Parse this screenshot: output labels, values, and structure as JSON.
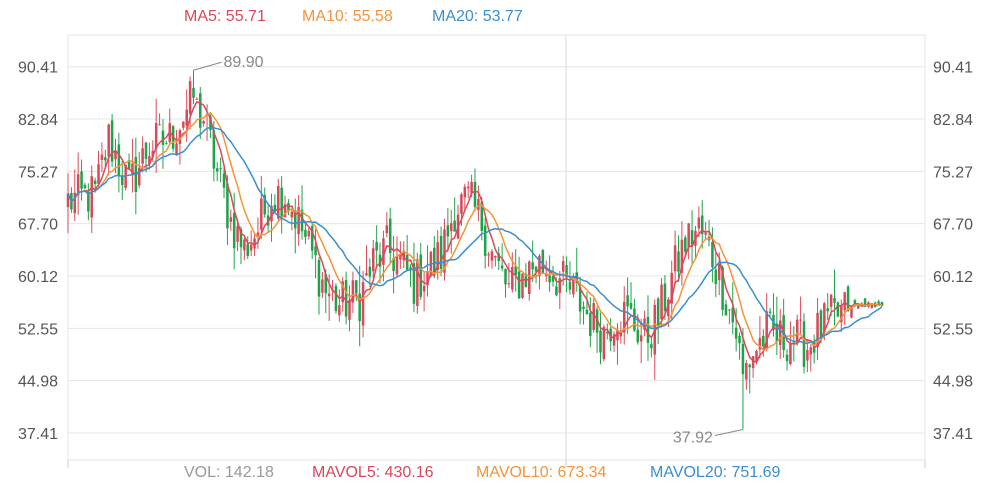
{
  "chart_data": {
    "type": "candlestick",
    "ylim": [
      33.5,
      95.0
    ],
    "y_ticks": [
      "90.41",
      "82.84",
      "75.27",
      "67.70",
      "60.12",
      "52.55",
      "44.98",
      "37.41"
    ],
    "grid": true,
    "colors": {
      "up": "#d84a5a",
      "down": "#1fa34a",
      "ma5": "#d84a5a",
      "ma10": "#f2953a",
      "ma20": "#3a8fd1",
      "vol": "#999999",
      "axis_text": "#555555",
      "grid": "#e6e6e6",
      "annotation": "#888888"
    },
    "ma_legend": [
      {
        "name": "MA5",
        "label": "MA5: ",
        "value": "55.71",
        "color": "#d84a5a"
      },
      {
        "name": "MA10",
        "label": "MA10: ",
        "value": "55.58",
        "color": "#f2953a"
      },
      {
        "name": "MA20",
        "label": "MA20: ",
        "value": "53.77",
        "color": "#3a8fd1"
      }
    ],
    "vol_legend": [
      {
        "label": "VOL: ",
        "value": "142.18",
        "color": "#999999"
      },
      {
        "label": "MAVOL5: ",
        "value": "430.16",
        "color": "#d84a5a"
      },
      {
        "label": "MAVOL10: ",
        "value": "673.34",
        "color": "#f2953a"
      },
      {
        "label": "MAVOL20: ",
        "value": "751.69",
        "color": "#3a8fd1"
      }
    ],
    "annotations": [
      {
        "text": "89.90",
        "index": 37,
        "value": 89.9,
        "type": "max"
      },
      {
        "text": "37.92",
        "index": 199,
        "value": 37.92,
        "type": "min"
      }
    ],
    "series_close_anchors": [
      [
        0,
        71.0
      ],
      [
        8,
        72.0
      ],
      [
        12,
        80.0
      ],
      [
        18,
        73.0
      ],
      [
        24,
        79.0
      ],
      [
        30,
        80.0
      ],
      [
        36,
        85.0
      ],
      [
        40,
        83.0
      ],
      [
        44,
        75.0
      ],
      [
        48,
        68.0
      ],
      [
        52,
        64.0
      ],
      [
        56,
        67.0
      ],
      [
        60,
        72.0
      ],
      [
        64,
        72.0
      ],
      [
        68,
        68.0
      ],
      [
        72,
        63.0
      ],
      [
        76,
        58.0
      ],
      [
        80,
        56.0
      ],
      [
        86,
        57.0
      ],
      [
        90,
        62.0
      ],
      [
        94,
        64.0
      ],
      [
        98,
        62.0
      ],
      [
        102,
        59.0
      ],
      [
        106,
        61.0
      ],
      [
        110,
        63.0
      ],
      [
        114,
        70.0
      ],
      [
        118,
        71.0
      ],
      [
        122,
        68.0
      ],
      [
        126,
        62.0
      ],
      [
        130,
        58.0
      ],
      [
        134,
        60.0
      ],
      [
        138,
        62.0
      ],
      [
        142,
        61.0
      ],
      [
        146,
        59.0
      ],
      [
        150,
        57.0
      ],
      [
        154,
        54.0
      ],
      [
        158,
        52.0
      ],
      [
        162,
        55.0
      ],
      [
        166,
        54.0
      ],
      [
        170,
        51.0
      ],
      [
        174,
        54.0
      ],
      [
        178,
        60.0
      ],
      [
        182,
        65.0
      ],
      [
        186,
        67.0
      ],
      [
        190,
        63.0
      ],
      [
        194,
        57.0
      ],
      [
        197,
        52.0
      ],
      [
        199,
        46.0
      ],
      [
        202,
        49.0
      ],
      [
        206,
        52.0
      ],
      [
        210,
        51.0
      ],
      [
        214,
        51.0
      ],
      [
        218,
        50.0
      ],
      [
        221,
        52.0
      ],
      [
        225,
        54.0
      ],
      [
        229,
        55.0
      ],
      [
        233,
        56.0
      ],
      [
        237,
        56.0
      ],
      [
        240,
        56.0
      ]
    ],
    "n_candles": 241
  }
}
